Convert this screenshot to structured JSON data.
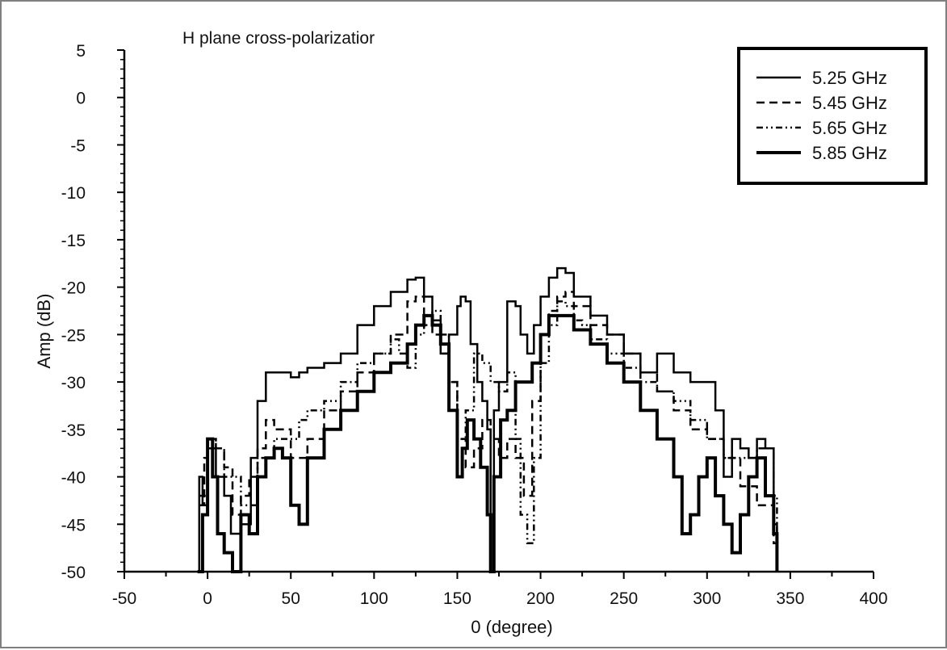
{
  "chart_data": {
    "type": "line",
    "title": "H plane cross-polarizatior",
    "xlabel": "0 (degree)",
    "ylabel": "Amp (dB)",
    "xlim": [
      -50,
      400
    ],
    "ylim": [
      -50,
      5
    ],
    "xticks": [
      -50,
      0,
      50,
      100,
      150,
      200,
      250,
      300,
      350,
      400
    ],
    "yticks": [
      5,
      0,
      -5,
      -10,
      -15,
      -20,
      -25,
      -30,
      -35,
      -40,
      -45,
      -50
    ],
    "legend_position": "top-right",
    "series": [
      {
        "name": "5.25 GHz",
        "style": "solid",
        "x": [
          -6,
          -5,
          -3,
          0,
          5,
          10,
          14,
          20,
          26,
          30,
          35,
          40,
          45,
          50,
          55,
          60,
          70,
          80,
          90,
          100,
          110,
          120,
          125,
          130,
          135,
          140,
          145,
          150,
          152,
          155,
          158,
          162,
          165,
          168,
          170,
          172,
          175,
          180,
          185,
          188,
          192,
          196,
          200,
          205,
          210,
          215,
          220,
          230,
          240,
          250,
          260,
          270,
          280,
          290,
          300,
          305,
          310,
          315,
          320,
          325,
          330,
          335,
          340,
          342
        ],
        "y": [
          -50,
          -40,
          -43,
          -37,
          -40,
          -42,
          -46,
          -45,
          -38,
          -32,
          -29,
          -29,
          -29,
          -29.5,
          -29,
          -28.5,
          -28,
          -27,
          -24,
          -22,
          -20.5,
          -19.2,
          -19,
          -21,
          -23.5,
          -27,
          -25,
          -22,
          -21,
          -21.5,
          -26,
          -30,
          -32,
          -35,
          -50,
          -33,
          -30,
          -21.5,
          -22,
          -25,
          -27,
          -24,
          -21,
          -19,
          -18,
          -18.5,
          -21,
          -23,
          -25,
          -27,
          -29,
          -27,
          -29,
          -30,
          -30,
          -33,
          -40,
          -36,
          -37,
          -38,
          -36,
          -37,
          -45,
          -50
        ]
      },
      {
        "name": "5.45 GHz",
        "style": "dashed",
        "x": [
          -5,
          -2,
          0,
          5,
          10,
          15,
          20,
          25,
          30,
          35,
          40,
          50,
          55,
          60,
          70,
          80,
          90,
          100,
          110,
          120,
          125,
          130,
          135,
          140,
          145,
          150,
          155,
          160,
          165,
          170,
          175,
          180,
          185,
          190,
          195,
          200,
          205,
          210,
          215,
          220,
          230,
          240,
          250,
          260,
          270,
          280,
          290,
          300,
          310,
          320,
          330,
          340,
          342
        ],
        "y": [
          -43,
          -38,
          -36,
          -37,
          -39,
          -44,
          -42,
          -40,
          -37,
          -34,
          -35,
          -38,
          -38,
          -36,
          -33,
          -31,
          -29,
          -27,
          -25,
          -21.5,
          -21,
          -24,
          -25,
          -27,
          -30,
          -36,
          -39,
          -37,
          -34,
          -36,
          -38,
          -36,
          -38,
          -42,
          -32,
          -25,
          -22.5,
          -21,
          -20.5,
          -22,
          -24,
          -25,
          -27,
          -29,
          -31,
          -33,
          -35,
          -36,
          -38,
          -41,
          -43,
          -47,
          -50
        ]
      },
      {
        "name": "5.65 GHz",
        "style": "dashdot",
        "x": [
          -5,
          0,
          5,
          10,
          20,
          30,
          40,
          50,
          55,
          60,
          70,
          80,
          90,
          100,
          110,
          115,
          120,
          125,
          130,
          135,
          140,
          145,
          150,
          155,
          160,
          165,
          170,
          175,
          180,
          185,
          188,
          192,
          196,
          200,
          205,
          210,
          215,
          220,
          225,
          230,
          240,
          250,
          260,
          270,
          280,
          290,
          300,
          310,
          320,
          330,
          340,
          342
        ],
        "y": [
          -42,
          -36,
          -37,
          -40,
          -43,
          -38,
          -36,
          -36,
          -34,
          -33,
          -32,
          -30,
          -28,
          -27,
          -25.5,
          -27,
          -28.5,
          -25,
          -23,
          -22.5,
          -25,
          -30,
          -36,
          -33,
          -27,
          -28,
          -30,
          -31,
          -29,
          -36,
          -44,
          -47,
          -38,
          -28,
          -24,
          -21.5,
          -22,
          -23.5,
          -24,
          -25.5,
          -27,
          -28.5,
          -30,
          -31,
          -32,
          -34,
          -36,
          -38,
          -38,
          -37,
          -42,
          -50
        ]
      },
      {
        "name": "5.85 GHz",
        "style": "thick",
        "x": [
          -6,
          -3,
          0,
          3,
          6,
          10,
          15,
          20,
          25,
          30,
          35,
          40,
          45,
          50,
          55,
          60,
          70,
          80,
          90,
          100,
          110,
          120,
          125,
          130,
          135,
          140,
          145,
          150,
          153,
          156,
          160,
          164,
          168,
          170,
          172,
          176,
          180,
          185,
          190,
          195,
          200,
          205,
          210,
          220,
          230,
          240,
          250,
          260,
          270,
          280,
          285,
          290,
          295,
          300,
          305,
          310,
          315,
          320,
          325,
          330,
          335,
          340,
          342
        ],
        "y": [
          -50,
          -44,
          -36,
          -40,
          -46,
          -48,
          -50,
          -44,
          -46,
          -40,
          -38,
          -37,
          -38,
          -43,
          -45,
          -38,
          -35,
          -33,
          -31,
          -29,
          -28,
          -26,
          -24,
          -23,
          -24,
          -26,
          -33,
          -40,
          -37,
          -34,
          -36,
          -39,
          -44,
          -50,
          -40,
          -34,
          -33,
          -30,
          -30,
          -28,
          -25,
          -23,
          -23,
          -24.5,
          -26,
          -28,
          -30,
          -33,
          -36,
          -40,
          -46,
          -44,
          -40,
          -38,
          -42,
          -45,
          -48,
          -44,
          -40,
          -38,
          -42,
          -46,
          -50
        ]
      }
    ]
  }
}
